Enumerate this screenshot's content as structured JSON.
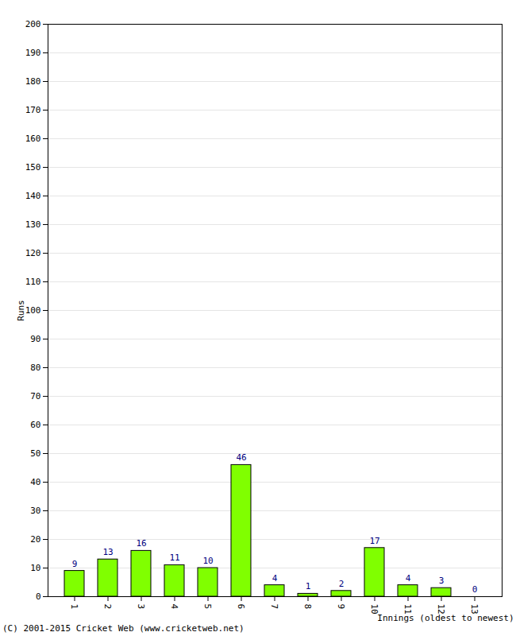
{
  "chart_data": {
    "type": "bar",
    "categories": [
      1,
      2,
      3,
      4,
      5,
      6,
      7,
      8,
      9,
      10,
      11,
      12,
      13
    ],
    "values": [
      9,
      13,
      16,
      11,
      10,
      46,
      4,
      1,
      2,
      17,
      4,
      3,
      0
    ],
    "color": "#80ff00",
    "x_label": "Innings (oldest to newest)",
    "y_label": "Runs",
    "caption": "(C) 2001-2015 Cricket Web (www.cricketweb.net)",
    "ylim": [
      0,
      200
    ],
    "yticks": [
      0,
      10,
      20,
      30,
      40,
      50,
      60,
      70,
      80,
      90,
      100,
      110,
      120,
      130,
      140,
      150,
      160,
      170,
      180,
      190,
      200
    ],
    "grid": true,
    "data_labels": true
  }
}
